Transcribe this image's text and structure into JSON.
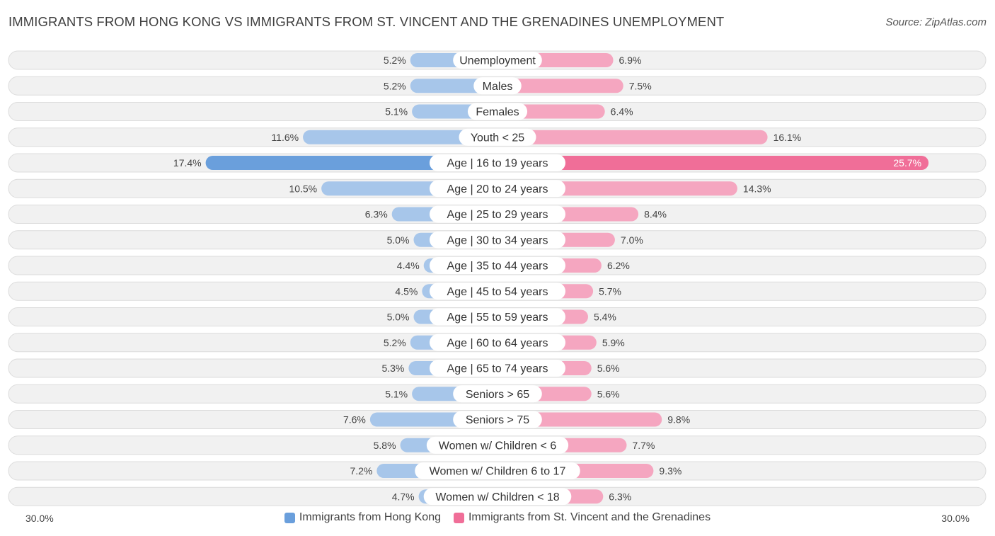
{
  "header": {
    "title": "IMMIGRANTS FROM HONG KONG VS IMMIGRANTS FROM ST. VINCENT AND THE GRENADINES UNEMPLOYMENT",
    "source": "Source: ZipAtlas.com"
  },
  "colors": {
    "left_light": "#a7c6ea",
    "left_strong": "#6a9fdc",
    "right_light": "#f5a6c0",
    "right_strong": "#f06e98",
    "row_bg": "#f1f1f1",
    "row_border": "#dcdcdc"
  },
  "chart_data": {
    "type": "bar",
    "orientation": "horizontal-diverging",
    "title": "IMMIGRANTS FROM HONG KONG VS IMMIGRANTS FROM ST. VINCENT AND THE GRENADINES UNEMPLOYMENT",
    "categories": [
      "Unemployment",
      "Males",
      "Females",
      "Youth < 25",
      "Age | 16 to 19 years",
      "Age | 20 to 24 years",
      "Age | 25 to 29 years",
      "Age | 30 to 34 years",
      "Age | 35 to 44 years",
      "Age | 45 to 54 years",
      "Age | 55 to 59 years",
      "Age | 60 to 64 years",
      "Age | 65 to 74 years",
      "Seniors > 65",
      "Seniors > 75",
      "Women w/ Children < 6",
      "Women w/ Children 6 to 17",
      "Women w/ Children < 18"
    ],
    "series": [
      {
        "name": "Immigrants from Hong Kong",
        "values": [
          5.2,
          5.2,
          5.1,
          11.6,
          17.4,
          10.5,
          6.3,
          5.0,
          4.4,
          4.5,
          5.0,
          5.2,
          5.3,
          5.1,
          7.6,
          5.8,
          7.2,
          4.7
        ],
        "labels": [
          "5.2%",
          "5.2%",
          "5.1%",
          "11.6%",
          "17.4%",
          "10.5%",
          "6.3%",
          "5.0%",
          "4.4%",
          "4.5%",
          "5.0%",
          "5.2%",
          "5.3%",
          "5.1%",
          "7.6%",
          "5.8%",
          "7.2%",
          "4.7%"
        ]
      },
      {
        "name": "Immigrants from St. Vincent and the Grenadines",
        "values": [
          6.9,
          7.5,
          6.4,
          16.1,
          25.7,
          14.3,
          8.4,
          7.0,
          6.2,
          5.7,
          5.4,
          5.9,
          5.6,
          5.6,
          9.8,
          7.7,
          9.3,
          6.3
        ],
        "labels": [
          "6.9%",
          "7.5%",
          "6.4%",
          "16.1%",
          "25.7%",
          "14.3%",
          "8.4%",
          "7.0%",
          "6.2%",
          "5.7%",
          "5.4%",
          "5.9%",
          "5.6%",
          "5.6%",
          "9.8%",
          "7.7%",
          "9.3%",
          "6.3%"
        ]
      }
    ],
    "xlim": [
      -30,
      30
    ],
    "axis_left_label": "30.0%",
    "axis_right_label": "30.0%",
    "highlight_index": 4,
    "legend_position": "bottom-center"
  }
}
